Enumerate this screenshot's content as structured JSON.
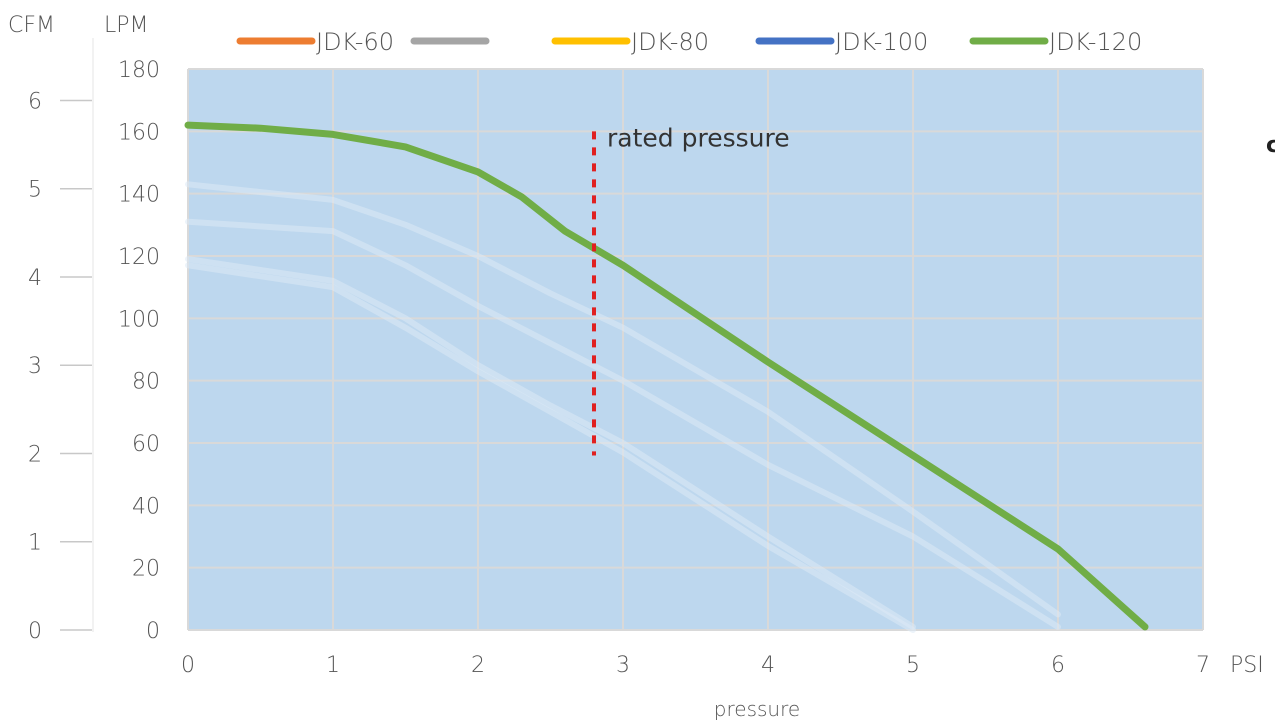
{
  "chart_data": {
    "type": "line",
    "xlabel": "pressure",
    "x_unit": "PSI",
    "left_unit": "CFM",
    "y_unit": "LPM",
    "xlim": [
      0,
      7
    ],
    "ylim": [
      0,
      180
    ],
    "x_ticks": [
      0,
      1,
      2,
      3,
      4,
      5,
      6,
      7
    ],
    "y_ticks": [
      0,
      20,
      40,
      60,
      80,
      100,
      120,
      140,
      160,
      180
    ],
    "cfm_ticks": [
      0,
      1,
      2,
      3,
      4,
      5,
      6
    ],
    "grid": true,
    "legend": "top",
    "plot_background": "#bdd7ee",
    "series": [
      {
        "name": "JDK-60",
        "color": "#ed7d31",
        "faded": true,
        "x": [
          0,
          1,
          1.5,
          2,
          2.5,
          3,
          4,
          5
        ],
        "y": [
          117,
          110,
          97,
          83,
          70,
          57,
          27,
          0
        ]
      },
      {
        "name": "",
        "color": "#a5a5a5",
        "faded": true,
        "x": [
          0,
          1,
          1.5,
          2,
          2.5,
          3,
          4,
          5
        ],
        "y": [
          119,
          112,
          100,
          85,
          72,
          60,
          30,
          1
        ]
      },
      {
        "name": "JDK-80",
        "color": "#ffc000",
        "faded": true,
        "x": [
          0,
          1,
          1.5,
          2,
          2.5,
          3,
          4,
          5,
          6
        ],
        "y": [
          131,
          128,
          117,
          104,
          92,
          80,
          53,
          30,
          1
        ]
      },
      {
        "name": "JDK-100",
        "color": "#4472c4",
        "faded": true,
        "x": [
          0,
          1,
          1.5,
          2,
          2.5,
          3,
          4,
          5,
          6
        ],
        "y": [
          143,
          138,
          130,
          120,
          108,
          97,
          70,
          38,
          5
        ]
      },
      {
        "name": "JDK-120",
        "color": "#70ad47",
        "faded": false,
        "x": [
          0,
          0.5,
          1,
          1.5,
          2,
          2.3,
          2.6,
          3,
          4,
          5,
          6,
          6.6
        ],
        "y": [
          162,
          161,
          159,
          155,
          147,
          139,
          128,
          117,
          86,
          56,
          26,
          1
        ]
      }
    ],
    "annotations": [
      {
        "text": "rated pressure",
        "x": 2.8,
        "y_from": 56,
        "y_to": 160,
        "color": "#e02020"
      }
    ],
    "edge_glyph": "c"
  }
}
